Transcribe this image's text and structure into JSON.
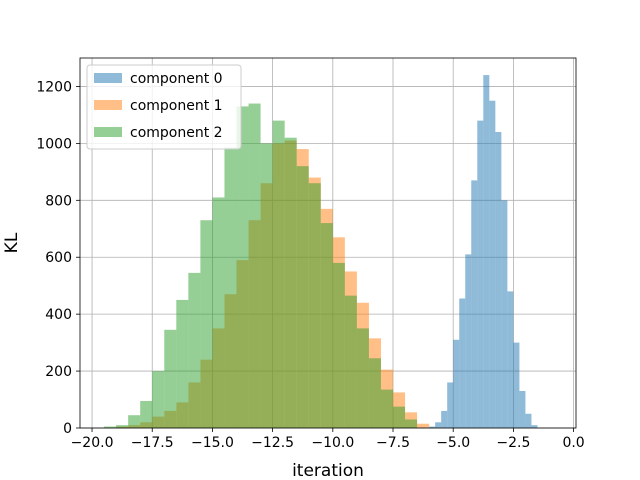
{
  "chart_data": {
    "type": "bar",
    "subtype": "histogram",
    "title": "",
    "xlabel": "iteration",
    "ylabel": "KL",
    "xlim": [
      -20.5,
      0.1
    ],
    "ylim": [
      0,
      1300
    ],
    "xticks": [
      -20.0,
      -17.5,
      -15.0,
      -12.5,
      -10.0,
      -7.5,
      -5.0,
      -2.5,
      0.0
    ],
    "xtick_labels": [
      "−20.0",
      "−17.5",
      "−15.0",
      "−12.5",
      "−10.0",
      "−7.5",
      "−5.0",
      "−2.5",
      "0.0"
    ],
    "yticks": [
      0,
      200,
      400,
      600,
      800,
      1000,
      1200
    ],
    "ytick_labels": [
      "0",
      "200",
      "400",
      "600",
      "800",
      "1000",
      "1200"
    ],
    "grid": true,
    "legend_position": "top-left",
    "colors": {
      "component 0": "#1f77b4",
      "component 1": "#ff7f0e",
      "component 2": "#2ca02c",
      "alpha": 0.5
    },
    "series": [
      {
        "name": "component 0",
        "bin_width": 0.25,
        "bins": [
          [
            -6.0,
            -5.75,
            5
          ],
          [
            -5.75,
            -5.5,
            20
          ],
          [
            -5.5,
            -5.25,
            60
          ],
          [
            -5.25,
            -5.0,
            160
          ],
          [
            -5.0,
            -4.75,
            310
          ],
          [
            -4.75,
            -4.5,
            455
          ],
          [
            -4.5,
            -4.25,
            610
          ],
          [
            -4.25,
            -4.0,
            870
          ],
          [
            -4.0,
            -3.75,
            1080
          ],
          [
            -3.75,
            -3.5,
            1240
          ],
          [
            -3.5,
            -3.25,
            1150
          ],
          [
            -3.25,
            -3.0,
            1040
          ],
          [
            -3.0,
            -2.75,
            800
          ],
          [
            -2.75,
            -2.5,
            480
          ],
          [
            -2.5,
            -2.25,
            300
          ],
          [
            -2.25,
            -2.0,
            130
          ],
          [
            -2.0,
            -1.75,
            50
          ],
          [
            -1.75,
            -1.5,
            10
          ]
        ]
      },
      {
        "name": "component 1",
        "bin_width": 0.5,
        "bins": [
          [
            -19.0,
            -18.5,
            5
          ],
          [
            -18.5,
            -18.0,
            10
          ],
          [
            -18.0,
            -17.5,
            20
          ],
          [
            -17.5,
            -17.0,
            40
          ],
          [
            -17.0,
            -16.5,
            60
          ],
          [
            -16.5,
            -16.0,
            90
          ],
          [
            -16.0,
            -15.5,
            160
          ],
          [
            -15.5,
            -15.0,
            240
          ],
          [
            -15.0,
            -14.5,
            350
          ],
          [
            -14.5,
            -14.0,
            470
          ],
          [
            -14.0,
            -13.5,
            590
          ],
          [
            -13.5,
            -13.0,
            730
          ],
          [
            -13.0,
            -12.5,
            860
          ],
          [
            -12.5,
            -12.0,
            1000
          ],
          [
            -12.0,
            -11.5,
            1010
          ],
          [
            -11.5,
            -11.0,
            980
          ],
          [
            -11.0,
            -10.5,
            880
          ],
          [
            -10.5,
            -10.0,
            770
          ],
          [
            -10.0,
            -9.5,
            670
          ],
          [
            -9.5,
            -9.0,
            550
          ],
          [
            -9.0,
            -8.5,
            440
          ],
          [
            -8.5,
            -8.0,
            315
          ],
          [
            -8.0,
            -7.5,
            205
          ],
          [
            -7.5,
            -7.0,
            125
          ],
          [
            -7.0,
            -6.5,
            55
          ],
          [
            -6.5,
            -6.0,
            15
          ]
        ]
      },
      {
        "name": "component 2",
        "bin_width": 0.5,
        "bins": [
          [
            -19.5,
            -19.0,
            5
          ],
          [
            -19.0,
            -18.5,
            10
          ],
          [
            -18.5,
            -18.0,
            45
          ],
          [
            -18.0,
            -17.5,
            95
          ],
          [
            -17.5,
            -17.0,
            200
          ],
          [
            -17.0,
            -16.5,
            345
          ],
          [
            -16.5,
            -16.0,
            450
          ],
          [
            -16.0,
            -15.5,
            545
          ],
          [
            -15.5,
            -15.0,
            730
          ],
          [
            -15.0,
            -14.5,
            810
          ],
          [
            -14.5,
            -14.0,
            985
          ],
          [
            -14.0,
            -13.5,
            1130
          ],
          [
            -13.5,
            -13.0,
            1140
          ],
          [
            -13.0,
            -12.5,
            1000
          ],
          [
            -12.5,
            -12.0,
            1080
          ],
          [
            -12.0,
            -11.5,
            1020
          ],
          [
            -11.5,
            -11.0,
            920
          ],
          [
            -11.0,
            -10.5,
            860
          ],
          [
            -10.5,
            -10.0,
            720
          ],
          [
            -10.0,
            -9.5,
            580
          ],
          [
            -9.5,
            -9.0,
            465
          ],
          [
            -9.0,
            -8.5,
            350
          ],
          [
            -8.5,
            -8.0,
            245
          ],
          [
            -8.0,
            -7.5,
            135
          ],
          [
            -7.5,
            -7.0,
            75
          ],
          [
            -7.0,
            -6.5,
            30
          ]
        ]
      }
    ]
  }
}
